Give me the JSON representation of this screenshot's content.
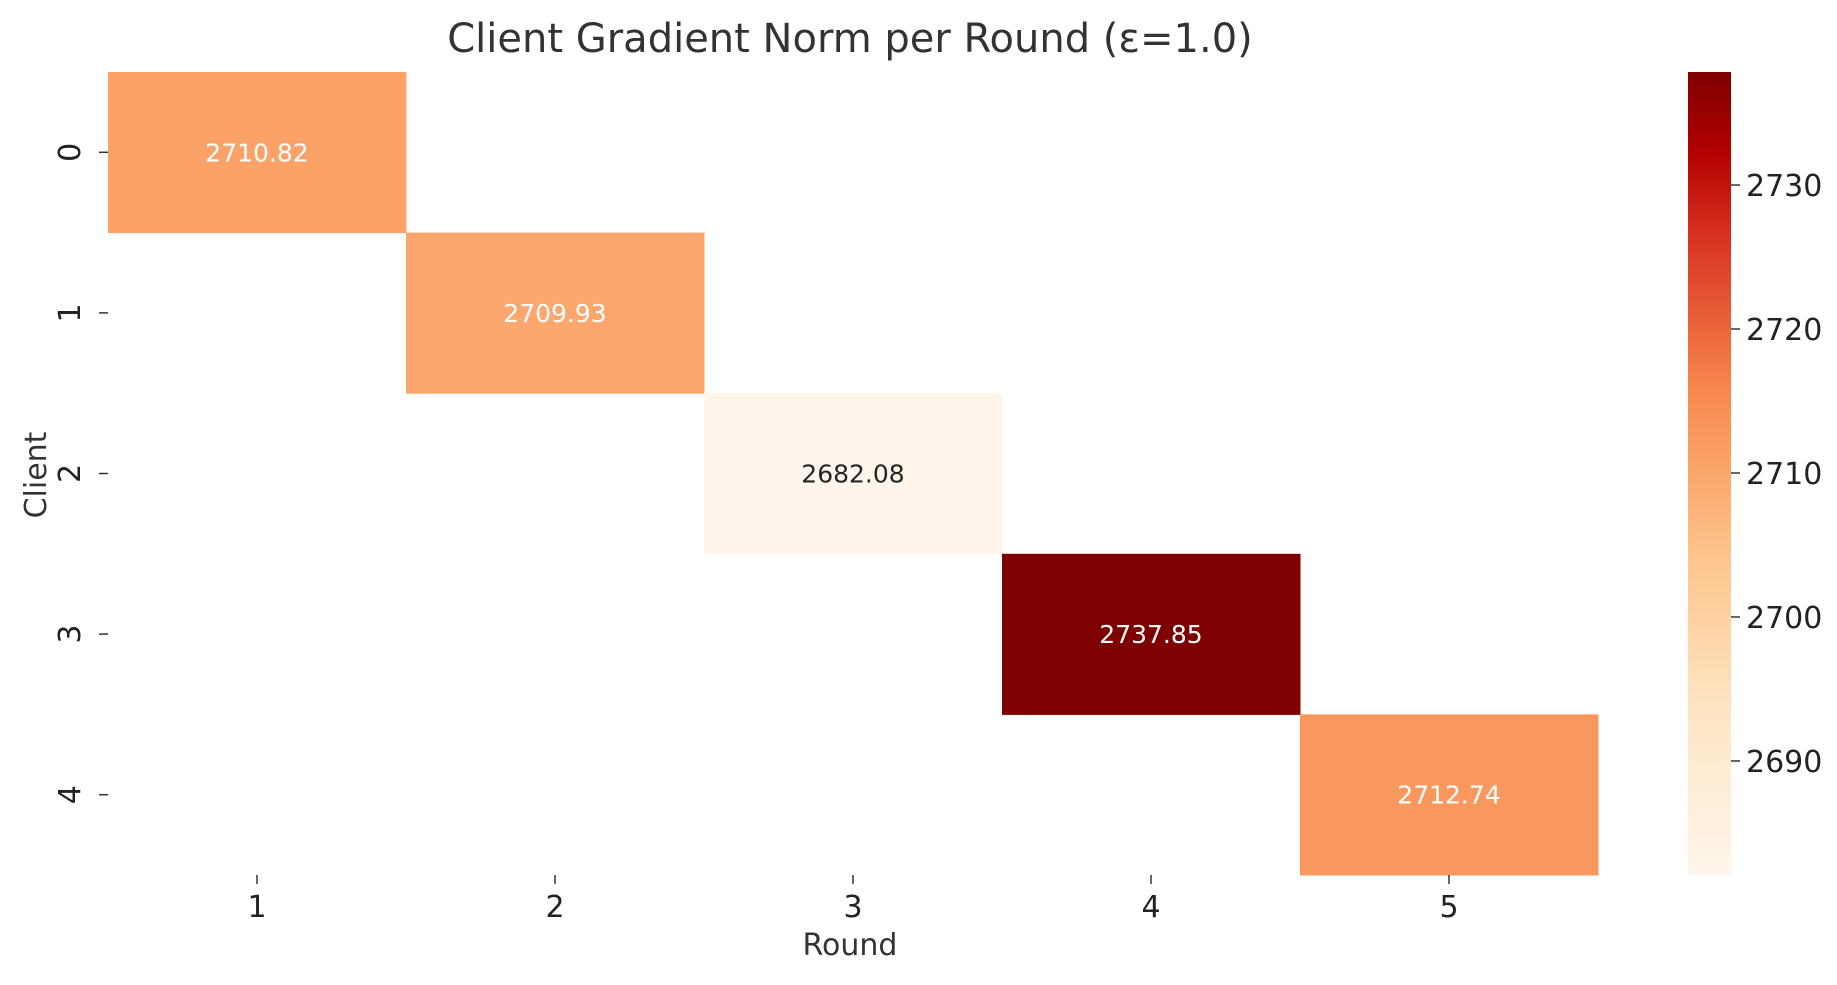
{
  "chart_data": {
    "type": "heatmap",
    "title": "Client Gradient Norm per Round (ε=1.0)",
    "xlabel": "Round",
    "ylabel": "Client",
    "x_categories": [
      "1",
      "2",
      "3",
      "4",
      "5"
    ],
    "y_categories": [
      "0",
      "1",
      "2",
      "3",
      "4"
    ],
    "cells": [
      {
        "client": "0",
        "round": "1",
        "value": 2710.82,
        "label": "2710.82"
      },
      {
        "client": "1",
        "round": "2",
        "value": 2709.93,
        "label": "2709.93"
      },
      {
        "client": "2",
        "round": "3",
        "value": 2682.08,
        "label": "2682.08"
      },
      {
        "client": "3",
        "round": "4",
        "value": 2737.85,
        "label": "2737.85"
      },
      {
        "client": "4",
        "round": "5",
        "value": 2712.74,
        "label": "2712.74"
      }
    ],
    "colormap": "OrRd",
    "color_range": [
      2682.08,
      2737.85
    ],
    "colorbar_ticks": [
      2690,
      2700,
      2710,
      2720,
      2730
    ],
    "colorbar_tick_labels": [
      "2690",
      "2700",
      "2710",
      "2720",
      "2730"
    ],
    "grid": false
  }
}
